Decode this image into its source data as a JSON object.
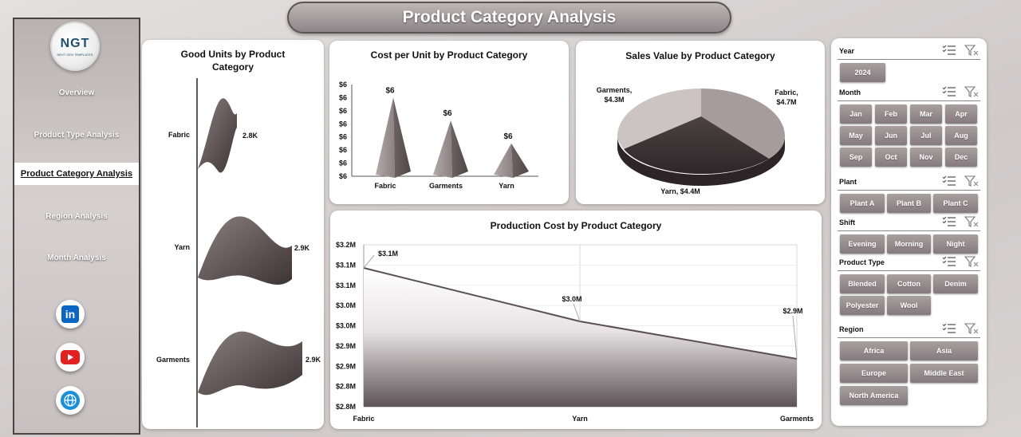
{
  "header": {
    "title": "Product Category Analysis"
  },
  "sidebar": {
    "logo_text": "NGT",
    "logo_sub": "NEXT GEN TEMPLATES",
    "nav": [
      {
        "label": "Overview"
      },
      {
        "label": "Product Type Analysis"
      },
      {
        "label": "Product Category Analysis"
      },
      {
        "label": "Region Analysis"
      },
      {
        "label": "Month Analysis"
      }
    ],
    "active_index": 2,
    "social": [
      {
        "icon": "linkedin-icon",
        "glyph": "in"
      },
      {
        "icon": "youtube-icon"
      },
      {
        "icon": "globe-icon"
      }
    ]
  },
  "charts": {
    "good_units": {
      "title_line1": "Good Units by Product",
      "title_line2": "Category",
      "labels": [
        "Fabric",
        "Yarn",
        "Garments"
      ],
      "value_labels": [
        "2.8K",
        "2.9K",
        "2.9K"
      ]
    },
    "cost_per_unit": {
      "title": "Cost per Unit by Product Category",
      "y_ticks": [
        "$6",
        "$6",
        "$6",
        "$6",
        "$6",
        "$6",
        "$6",
        "$6"
      ],
      "categories": [
        "Fabric",
        "Garments",
        "Yarn"
      ],
      "value_labels": [
        "$6",
        "$6",
        "$6"
      ]
    },
    "sales_value": {
      "title": "Sales Value by Product Category",
      "labels": {
        "fabric_1": "Fabric,",
        "fabric_2": "$4.7M",
        "garments_1": "Garments,",
        "garments_2": "$4.3M",
        "yarn": "Yarn, $4.4M"
      }
    },
    "production_cost": {
      "title": "Production Cost by Product Category",
      "y_ticks": [
        "$3.2M",
        "$3.1M",
        "$3.1M",
        "$3.0M",
        "$3.0M",
        "$2.9M",
        "$2.9M",
        "$2.8M",
        "$2.8M"
      ],
      "categories": [
        "Fabric",
        "Yarn",
        "Garments"
      ],
      "value_labels": [
        "$3.1M",
        "$3.0M",
        "$2.9M"
      ]
    }
  },
  "chart_data": [
    {
      "type": "bar",
      "title": "Good Units by Product Category",
      "categories": [
        "Fabric",
        "Yarn",
        "Garments"
      ],
      "values": [
        2800,
        2900,
        2900
      ],
      "value_labels": [
        "2.8K",
        "2.9K",
        "2.9K"
      ],
      "orientation": "horizontal"
    },
    {
      "type": "bar",
      "title": "Cost per Unit by Product Category",
      "categories": [
        "Fabric",
        "Garments",
        "Yarn"
      ],
      "values": [
        6.4,
        6.2,
        6.0
      ],
      "value_labels": [
        "$6",
        "$6",
        "$6"
      ]
    },
    {
      "type": "pie",
      "title": "Sales Value by Product Category",
      "categories": [
        "Fabric",
        "Yarn",
        "Garments"
      ],
      "values": [
        4.7,
        4.4,
        4.3
      ],
      "unit": "$M"
    },
    {
      "type": "area",
      "title": "Production Cost by Product Category",
      "categories": [
        "Fabric",
        "Yarn",
        "Garments"
      ],
      "values": [
        3.1,
        3.0,
        2.9
      ],
      "value_labels": [
        "$3.1M",
        "$3.0M",
        "$2.9M"
      ],
      "ylim": [
        2.8,
        3.2
      ]
    }
  ],
  "slicers": {
    "year": {
      "label": "Year",
      "items": [
        "2024"
      ]
    },
    "month": {
      "label": "Month",
      "items": [
        "Jan",
        "Feb",
        "Mar",
        "Apr",
        "May",
        "Jun",
        "Jul",
        "Aug",
        "Sep",
        "Oct",
        "Nov",
        "Dec"
      ]
    },
    "plant": {
      "label": "Plant",
      "items": [
        "Plant A",
        "Plant B",
        "Plant C"
      ]
    },
    "shift": {
      "label": "Shift",
      "items": [
        "Evening",
        "Morning",
        "Night"
      ]
    },
    "product_type": {
      "label": "Product Type",
      "items": [
        "Blended",
        "Cotton",
        "Denim",
        "Polyester",
        "Wool"
      ]
    },
    "region": {
      "label": "Region",
      "items": [
        "Africa",
        "Asia",
        "Europe",
        "Middle East",
        "North America"
      ]
    }
  }
}
